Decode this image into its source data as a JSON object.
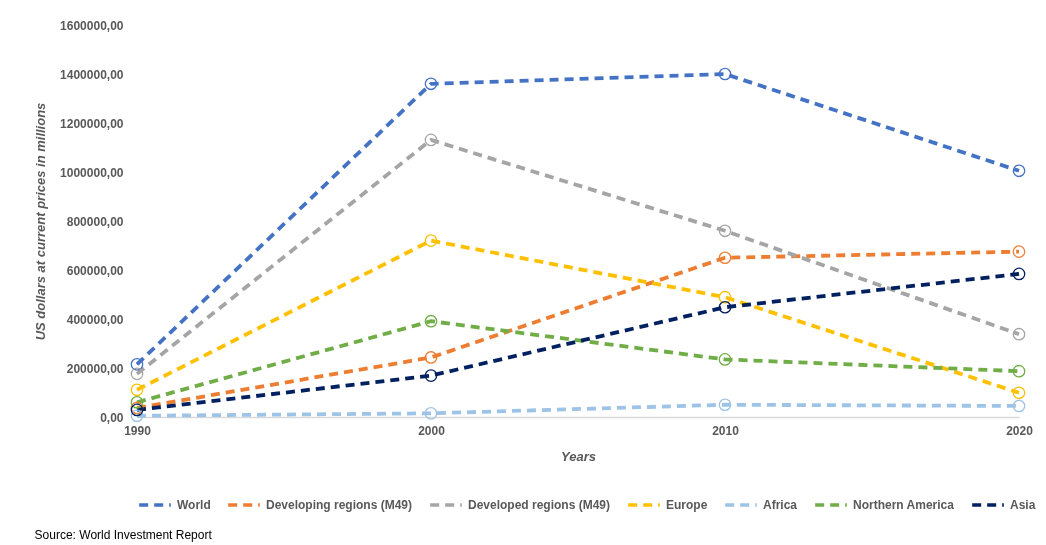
{
  "chart_data": {
    "type": "line",
    "xlabel": "Years",
    "ylabel": "US dollars at current prices in millions",
    "annotations": [
      "Source: World Investment Report"
    ],
    "x": [
      1990,
      2000,
      2010,
      2020
    ],
    "xlim": [
      1990,
      2020
    ],
    "xticks": [
      1990,
      2000,
      2010,
      2020
    ],
    "ylim": [
      0,
      1600000
    ],
    "yticks": [
      {
        "value": 0,
        "label": "0,00"
      },
      {
        "value": 200000,
        "label": "200000,00"
      },
      {
        "value": 400000,
        "label": "400000,00"
      },
      {
        "value": 600000,
        "label": "600000,00"
      },
      {
        "value": 800000,
        "label": "800000,00"
      },
      {
        "value": 1000000,
        "label": "1000000,00"
      },
      {
        "value": 1200000,
        "label": "1200000,00"
      },
      {
        "value": 1400000,
        "label": "1400000,00"
      },
      {
        "value": 1600000,
        "label": "1600000,00"
      }
    ],
    "series": [
      {
        "name": "World",
        "color": "#4472c4",
        "values": [
          215000,
          1360000,
          1400000,
          1005000
        ]
      },
      {
        "name": "Developing regions (M49)",
        "color": "#ed7d31",
        "values": [
          37000,
          243000,
          650000,
          675000
        ]
      },
      {
        "name": "Developed regions (M49)",
        "color": "#a5a5a5",
        "values": [
          176000,
          1131000,
          760000,
          338000
        ]
      },
      {
        "name": "Europe",
        "color": "#ffc000",
        "values": [
          111000,
          720000,
          489000,
          99000
        ]
      },
      {
        "name": "Africa",
        "color": "#9dc3e6",
        "values": [
          5000,
          15000,
          50000,
          45000
        ]
      },
      {
        "name": "Northern America",
        "color": "#70ad47",
        "values": [
          60000,
          391000,
          235000,
          187000
        ]
      },
      {
        "name": "Asia",
        "color": "#002060",
        "values": [
          29000,
          169000,
          448000,
          584000
        ]
      }
    ],
    "legend": "bottom",
    "marker": "circle",
    "line_style": "dashed"
  }
}
